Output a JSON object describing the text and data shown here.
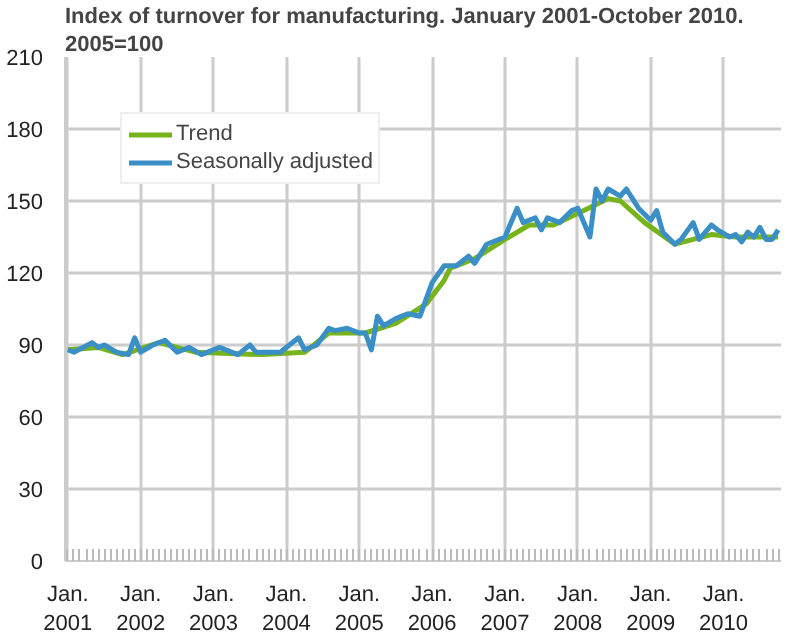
{
  "chart_data": {
    "type": "line",
    "title": "Index of turnover for manufacturing. January 2001-October 2010.",
    "subtitle": "2005=100",
    "xlim": [
      "2001-01",
      "2010-10"
    ],
    "ylim": [
      0,
      210
    ],
    "yticks": [
      0,
      30,
      60,
      90,
      120,
      150,
      180,
      210
    ],
    "xticks": [
      {
        "value": "2001-01",
        "label": "Jan.\n2001"
      },
      {
        "value": "2002-01",
        "label": "Jan.\n2002"
      },
      {
        "value": "2003-01",
        "label": "Jan.\n2003"
      },
      {
        "value": "2004-01",
        "label": "Jan.\n2004"
      },
      {
        "value": "2005-01",
        "label": "Jan.\n2005"
      },
      {
        "value": "2006-01",
        "label": "Jan.\n2006"
      },
      {
        "value": "2007-01",
        "label": "Jan.\n2007"
      },
      {
        "value": "2008-01",
        "label": "Jan.\n2008"
      },
      {
        "value": "2009-01",
        "label": "Jan.\n2009"
      },
      {
        "value": "2010-01",
        "label": "Jan.\n2010"
      }
    ],
    "grid": true,
    "legend": "top left",
    "marker": "none",
    "line_style": "solid",
    "series": [
      {
        "name": "Trend",
        "color": "#77b31b",
        "x": [
          "2001-01",
          "2001-06",
          "2001-10",
          "2002-04",
          "2002-10",
          "2003-09",
          "2004-04",
          "2004-08",
          "2005-02",
          "2005-07",
          "2005-12",
          "2006-03",
          "2006-04",
          "2006-08",
          "2007-01",
          "2007-05",
          "2007-09",
          "2008-02",
          "2008-06",
          "2008-08",
          "2008-12",
          "2009-05",
          "2009-11",
          "2010-03",
          "2010-10"
        ],
        "values": [
          88,
          89,
          86,
          91,
          87,
          86,
          87,
          95,
          95,
          99,
          107,
          117,
          122,
          126,
          134,
          140,
          140,
          146,
          151,
          150,
          141,
          132,
          136,
          135,
          135
        ]
      },
      {
        "name": "Seasonally adjusted",
        "color": "#3a8fc7",
        "x": [
          "2001-01",
          "2001-02",
          "2001-05",
          "2001-06",
          "2001-07",
          "2001-09",
          "2001-11",
          "2001-12",
          "2002-01",
          "2002-03",
          "2002-05",
          "2002-07",
          "2002-09",
          "2002-11",
          "2003-02",
          "2003-05",
          "2003-07",
          "2003-08",
          "2003-12",
          "2004-03",
          "2004-04",
          "2004-06",
          "2004-08",
          "2004-09",
          "2004-11",
          "2005-01",
          "2005-02",
          "2005-03",
          "2005-04",
          "2005-05",
          "2005-07",
          "2005-09",
          "2005-11",
          "2006-01",
          "2006-03",
          "2006-05",
          "2006-07",
          "2006-08",
          "2006-10",
          "2007-01",
          "2007-03",
          "2007-04",
          "2007-06",
          "2007-07",
          "2007-08",
          "2007-10",
          "2007-12",
          "2008-01",
          "2008-03",
          "2008-04",
          "2008-05",
          "2008-06",
          "2008-08",
          "2008-09",
          "2008-11",
          "2009-01",
          "2009-02",
          "2009-03",
          "2009-05",
          "2009-06",
          "2009-08",
          "2009-09",
          "2009-11",
          "2009-12",
          "2010-02",
          "2010-03",
          "2010-04",
          "2010-05",
          "2010-06",
          "2010-07",
          "2010-08",
          "2010-09",
          "2010-10"
        ],
        "values": [
          88,
          87,
          91,
          89,
          90,
          87,
          86,
          93,
          87,
          90,
          92,
          87,
          89,
          86,
          89,
          86,
          90,
          87,
          87,
          93,
          88,
          90,
          97,
          96,
          97,
          95,
          95,
          88,
          102,
          98,
          101,
          103,
          102,
          116,
          123,
          123,
          127,
          124,
          132,
          135,
          147,
          141,
          143,
          138,
          143,
          141,
          146,
          147,
          135,
          155,
          150,
          155,
          152,
          155,
          147,
          142,
          146,
          137,
          132,
          134,
          141,
          134,
          140,
          138,
          135,
          136,
          133,
          137,
          135,
          139,
          134,
          134,
          138
        ]
      }
    ]
  }
}
